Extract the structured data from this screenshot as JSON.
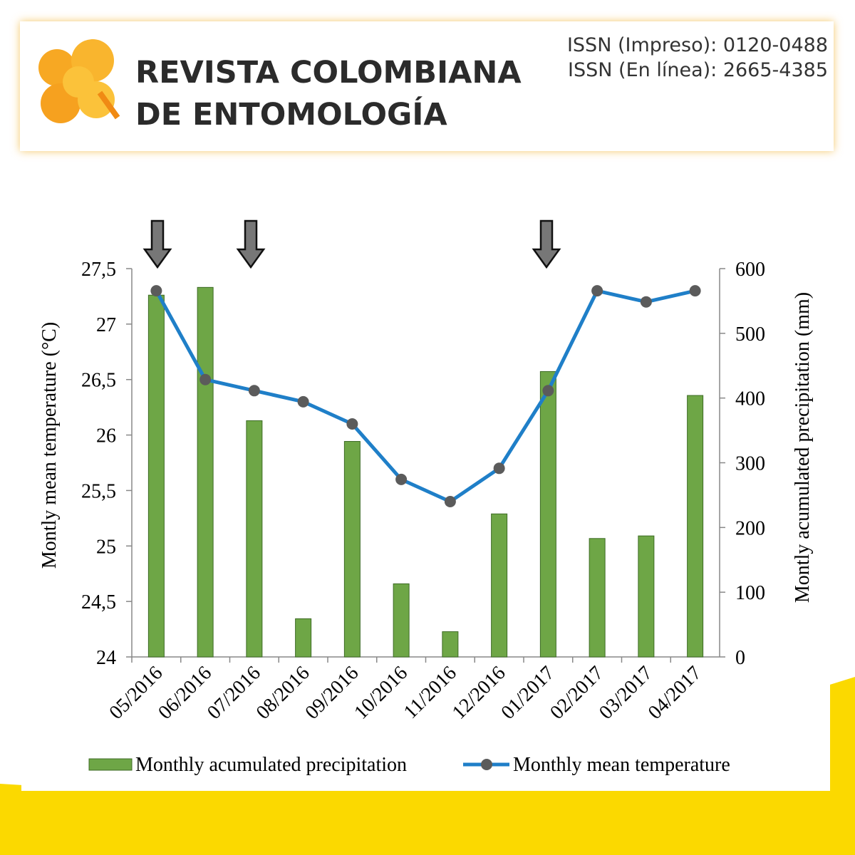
{
  "header": {
    "journal_line1": "REVISTA COLOMBIANA",
    "journal_line2": "DE ENTOMOLOGÍA",
    "issn_print": "ISSN (Impreso): 0120-0488",
    "issn_online": "ISSN (En línea): 2665-4385"
  },
  "chart_data": {
    "type": "combo",
    "categories": [
      "05/2016",
      "06/2016",
      "07/2016",
      "08/2016",
      "09/2016",
      "10/2016",
      "11/2016",
      "12/2016",
      "01/2017",
      "02/2017",
      "03/2017",
      "04/2017"
    ],
    "y_label": "Montly mean temperature (°C)",
    "y2_label": "Montly acumulated precipitation (mm)",
    "ylim": [
      24,
      27.5
    ],
    "yticks": [
      24,
      {
        "value": 24.5,
        "label": "24,5"
      },
      25,
      {
        "value": 25.5,
        "label": "25,5"
      },
      26,
      {
        "value": 26.5,
        "label": "26,5"
      },
      27,
      {
        "value": 27.5,
        "label": "27,5"
      }
    ],
    "y2lim": [
      0,
      600
    ],
    "y2ticks": [
      0,
      100,
      200,
      300,
      400,
      500,
      600
    ],
    "legend": "bottom",
    "series": [
      {
        "name": "Monthly acumulated precipitation",
        "type": "bar",
        "axis": "y2",
        "color": "#6ea646",
        "values": [
          559,
          571,
          365,
          59,
          333,
          113,
          39,
          221,
          441,
          183,
          187,
          404
        ]
      },
      {
        "name": "Monthly mean temperature",
        "type": "line",
        "color": "#1f7fc8",
        "marker_color": "#5b5b5b",
        "values": [
          27.3,
          26.5,
          26.4,
          26.3,
          26.1,
          25.6,
          25.4,
          25.7,
          26.4,
          27.3,
          27.2,
          27.3
        ]
      }
    ]
  }
}
